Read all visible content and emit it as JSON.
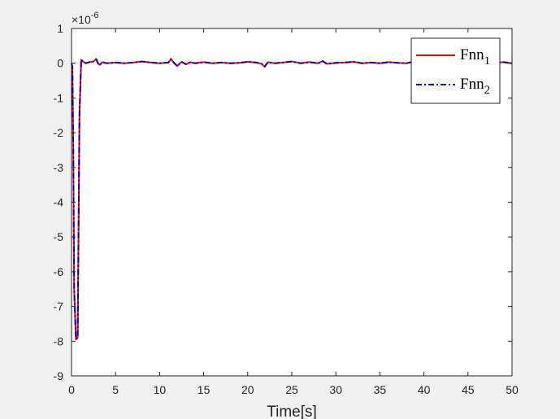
{
  "chart_data": {
    "type": "line",
    "xlabel": "Time[s]",
    "ylabel": "",
    "title": "",
    "xlim": [
      0,
      50
    ],
    "ylim": [
      -9,
      1
    ],
    "y_exponent_label": "×10",
    "y_exponent_power": "-6",
    "xticks": [
      0,
      5,
      10,
      15,
      20,
      25,
      30,
      35,
      40,
      45,
      50
    ],
    "yticks": [
      1,
      0,
      -1,
      -2,
      -3,
      -4,
      -5,
      -6,
      -7,
      -8,
      -9
    ],
    "grid": false,
    "legend_position": "top-right",
    "series": [
      {
        "name": "Fnn",
        "subscript": "1",
        "color": "#ff0000",
        "style": "solid",
        "x": [
          0,
          0.1,
          0.2,
          0.3,
          0.5,
          0.7,
          0.9,
          1.1,
          1.3,
          1.6,
          2.0,
          2.5,
          2.8,
          3.0,
          3.2,
          3.5,
          4.0,
          5,
          6,
          7,
          8,
          9,
          10,
          11,
          11.3,
          11.6,
          12,
          12.5,
          13,
          13.5,
          14,
          15,
          16,
          17,
          18,
          19,
          20,
          21,
          21.6,
          21.9,
          22.3,
          23,
          24,
          25,
          26,
          27,
          28,
          28.5,
          29,
          30,
          31,
          32,
          33,
          34,
          35,
          36,
          37,
          38,
          39,
          40,
          41,
          42,
          43,
          44,
          45,
          46,
          47,
          48,
          49,
          50
        ],
        "values": [
          0,
          -0.1,
          -2.5,
          -6.5,
          -7.95,
          -7.9,
          -1.5,
          0.1,
          0.05,
          0.0,
          0.03,
          0.05,
          0.12,
          0.0,
          -0.05,
          0.03,
          0.0,
          0.02,
          0.0,
          0.02,
          0.05,
          0.02,
          0.0,
          0.02,
          0.12,
          0.02,
          -0.08,
          0.04,
          -0.03,
          0.03,
          0.0,
          0.03,
          0.0,
          0.02,
          0.0,
          0.01,
          0.04,
          0.02,
          -0.02,
          -0.1,
          0.03,
          0.0,
          0.02,
          0.05,
          0.0,
          0.03,
          0.0,
          0.06,
          -0.02,
          0.01,
          0.02,
          0.04,
          0.0,
          0.02,
          0.0,
          0.03,
          0.01,
          0.0,
          0.05,
          0.01,
          0.03,
          0.0,
          0.02,
          0.0,
          0.03,
          0.0,
          0.04,
          0.01,
          0.03,
          0.0
        ]
      },
      {
        "name": "Fnn",
        "subscript": "2",
        "color": "#0000b4",
        "style": "dashdot",
        "x": [
          0,
          0.1,
          0.2,
          0.3,
          0.5,
          0.7,
          0.9,
          1.1,
          1.3,
          1.6,
          2.0,
          2.5,
          2.8,
          3.0,
          3.2,
          3.5,
          4.0,
          5,
          6,
          7,
          8,
          9,
          10,
          11,
          11.3,
          11.6,
          12,
          12.5,
          13,
          13.5,
          14,
          15,
          16,
          17,
          18,
          19,
          20,
          21,
          21.6,
          21.9,
          22.3,
          23,
          24,
          25,
          26,
          27,
          28,
          28.5,
          29,
          30,
          31,
          32,
          33,
          34,
          35,
          36,
          37,
          38,
          39,
          40,
          41,
          42,
          43,
          44,
          45,
          46,
          47,
          48,
          49,
          50
        ],
        "values": [
          0,
          -0.1,
          -2.5,
          -6.5,
          -7.95,
          -7.9,
          -1.5,
          0.1,
          0.05,
          0.0,
          0.03,
          0.05,
          0.12,
          0.0,
          -0.05,
          0.03,
          0.0,
          0.02,
          0.0,
          0.02,
          0.05,
          0.02,
          0.0,
          0.02,
          0.12,
          0.02,
          -0.08,
          0.04,
          -0.03,
          0.03,
          0.0,
          0.03,
          0.0,
          0.02,
          0.0,
          0.01,
          0.04,
          0.02,
          -0.02,
          -0.1,
          0.03,
          0.0,
          0.02,
          0.05,
          0.0,
          0.03,
          0.0,
          0.06,
          -0.02,
          0.01,
          0.02,
          0.04,
          0.0,
          0.02,
          0.0,
          0.03,
          0.01,
          0.0,
          0.05,
          0.01,
          0.03,
          0.0,
          0.02,
          0.0,
          0.03,
          0.0,
          0.04,
          0.01,
          0.03,
          0.0
        ]
      }
    ]
  }
}
